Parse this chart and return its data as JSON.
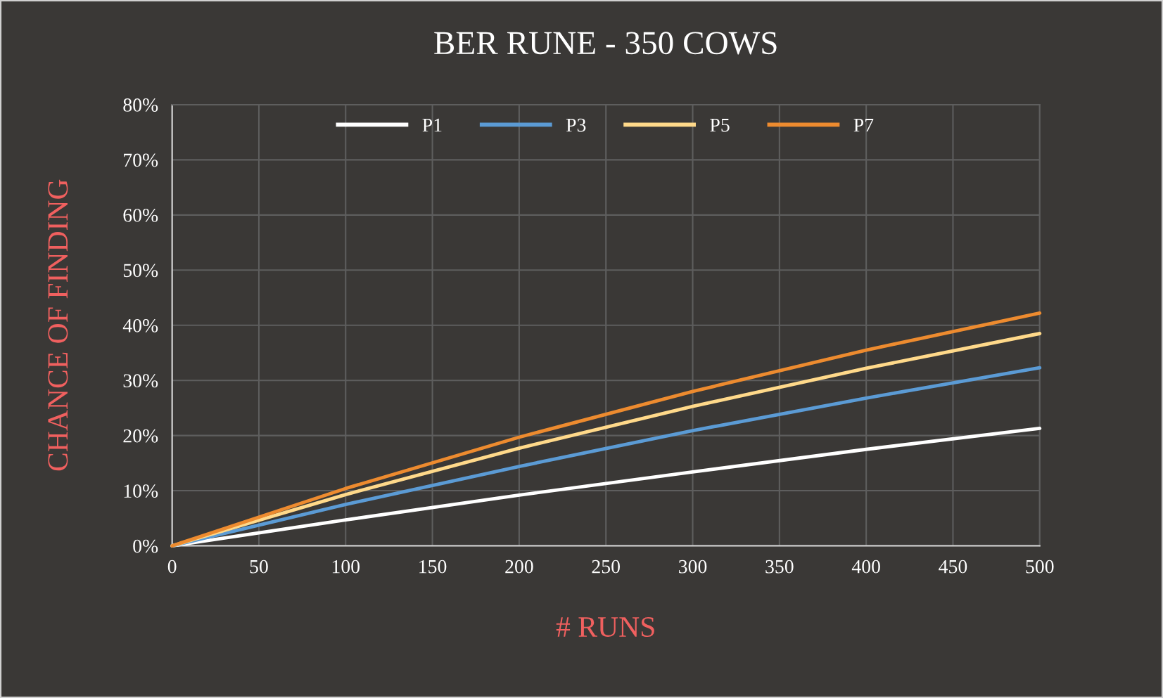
{
  "chart_data": {
    "type": "line",
    "title": "BER RUNE - 350 COWS",
    "xlabel": "# RUNS",
    "ylabel": "CHANCE OF FINDING",
    "x": [
      0,
      100,
      200,
      300,
      400,
      500
    ],
    "series": [
      {
        "name": "P1",
        "color": "#ffffff",
        "values": [
          0,
          4.7,
          9.2,
          13.4,
          17.5,
          21.3
        ]
      },
      {
        "name": "P3",
        "color": "#5b9bd5",
        "values": [
          0,
          7.5,
          14.4,
          20.9,
          26.8,
          32.3
        ]
      },
      {
        "name": "P5",
        "color": "#ffd98a",
        "values": [
          0,
          9.3,
          17.7,
          25.3,
          32.2,
          38.5
        ]
      },
      {
        "name": "P7",
        "color": "#ed8b2f",
        "values": [
          0,
          10.4,
          19.7,
          28.0,
          35.5,
          42.2
        ]
      }
    ],
    "xlim": [
      0,
      500
    ],
    "xticks": [
      0,
      50,
      100,
      150,
      200,
      250,
      300,
      350,
      400,
      450,
      500
    ],
    "ylim": [
      0,
      80
    ],
    "yticks": [
      {
        "value": 0,
        "label": "0%"
      },
      {
        "value": 10,
        "label": "10%"
      },
      {
        "value": 20,
        "label": "20%"
      },
      {
        "value": 30,
        "label": "30%"
      },
      {
        "value": 40,
        "label": "40%"
      },
      {
        "value": 50,
        "label": "50%"
      },
      {
        "value": 60,
        "label": "60%"
      },
      {
        "value": 70,
        "label": "70%"
      },
      {
        "value": 80,
        "label": "80%"
      }
    ],
    "grid": true,
    "legend": "top",
    "marker": "none",
    "line_style": "solid"
  }
}
